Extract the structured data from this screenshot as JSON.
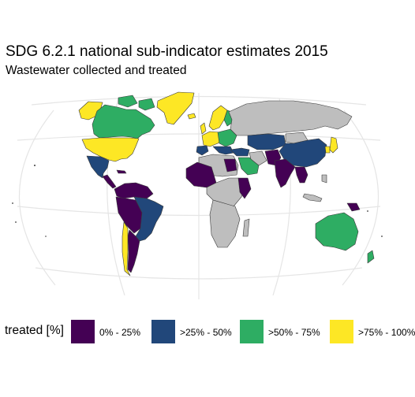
{
  "header": {
    "title": "SDG 6.2.1 national sub-indicator estimates 2015",
    "subtitle": "Wastewater collected and treated"
  },
  "legend": {
    "title": "treated [%]",
    "items": [
      {
        "label": "0% - 25%",
        "color": "#440154"
      },
      {
        "label": ">25% - 50%",
        "color": "#21477A"
      },
      {
        "label": ">50% - 75%",
        "color": "#2EAD63"
      },
      {
        "label": ">75% - 100%",
        "color": "#FDE725"
      }
    ]
  },
  "colors": {
    "no_data": "#BEBEBE",
    "border": "#3A3A3A",
    "graticule": "#E5E5E5"
  }
}
